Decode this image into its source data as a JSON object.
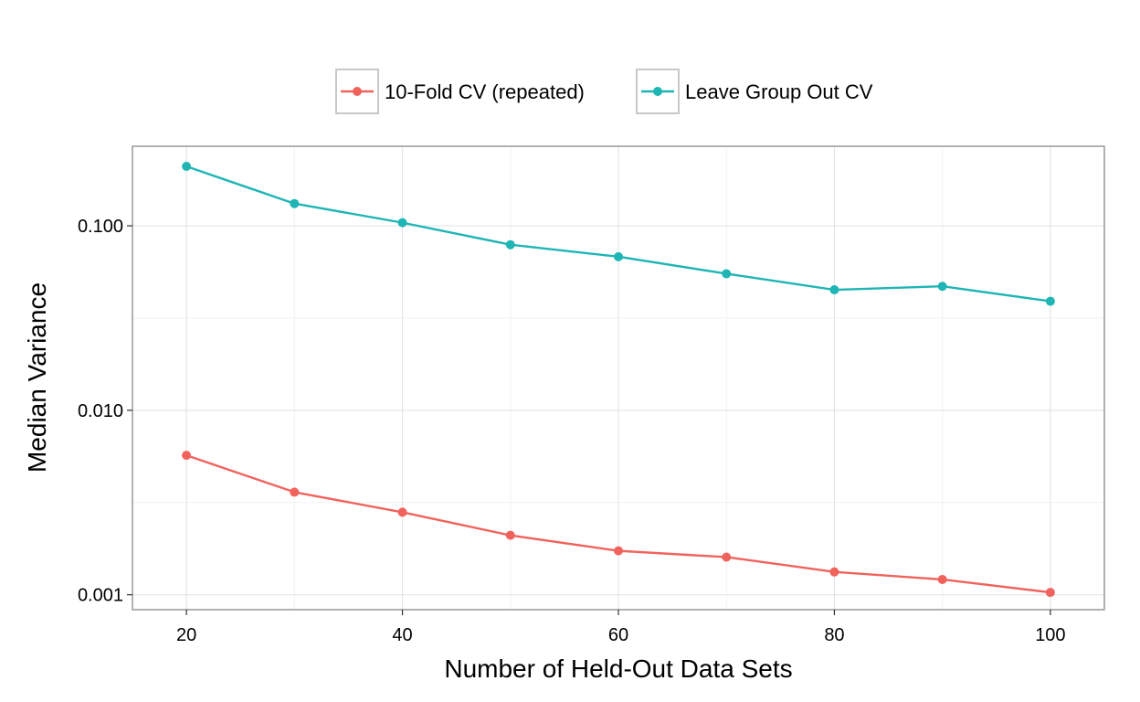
{
  "chart_data": {
    "type": "line",
    "xlabel": "Number of Held-Out Data Sets",
    "ylabel": "Median Variance",
    "x": [
      20,
      30,
      40,
      50,
      60,
      70,
      80,
      90,
      100
    ],
    "xlim": [
      15,
      105
    ],
    "ylim": [
      0.00083,
      0.27
    ],
    "y_scale": "log",
    "grid": true,
    "legend_position": "top",
    "x_ticks": [
      {
        "value": 20,
        "label": "20"
      },
      {
        "value": 40,
        "label": "40"
      },
      {
        "value": 60,
        "label": "60"
      },
      {
        "value": 80,
        "label": "80"
      },
      {
        "value": 100,
        "label": "100"
      }
    ],
    "y_ticks": [
      {
        "value": 0.001,
        "label": "0.001"
      },
      {
        "value": 0.01,
        "label": "0.010"
      },
      {
        "value": 0.1,
        "label": "0.100"
      }
    ],
    "series": [
      {
        "name": "10-Fold CV (repeated)",
        "color": "#F0635D",
        "values": [
          0.0057,
          0.0036,
          0.0028,
          0.0021,
          0.00173,
          0.0016,
          0.00133,
          0.00121,
          0.00103
        ]
      },
      {
        "name": "Leave Group Out CV",
        "color": "#1FB5B5",
        "values": [
          0.21,
          0.132,
          0.104,
          0.079,
          0.068,
          0.055,
          0.045,
          0.047,
          0.039
        ]
      }
    ]
  }
}
